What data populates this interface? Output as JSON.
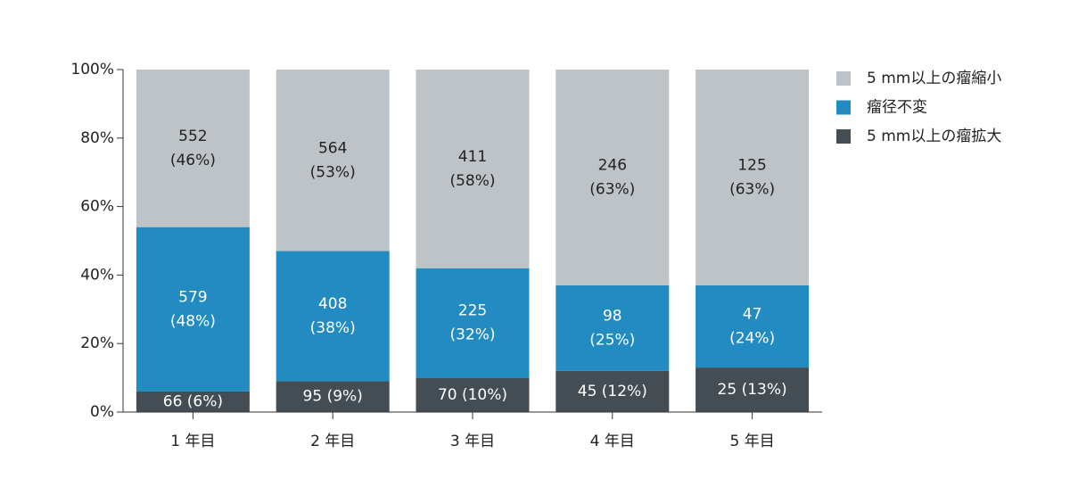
{
  "chart_data": {
    "type": "stacked_bar",
    "categories": [
      "1 年目",
      "2 年目",
      "3 年目",
      "4 年目",
      "5 年目"
    ],
    "series": [
      {
        "name": "5 mm以上の瘤拡大",
        "color": "#444d54",
        "values": [
          6,
          9,
          10,
          12,
          13
        ],
        "value_labels": [
          [
            "66 (6%)"
          ],
          [
            "95 (9%)"
          ],
          [
            "70 (10%)"
          ],
          [
            "45 (12%)"
          ],
          [
            "25 (13%)"
          ]
        ]
      },
      {
        "name": "瘤径不変",
        "color": "#228bc2",
        "values": [
          48,
          38,
          32,
          25,
          24
        ],
        "value_labels": [
          [
            "579",
            "(48%)"
          ],
          [
            "408",
            "(38%)"
          ],
          [
            "225",
            "(32%)"
          ],
          [
            "98",
            "(25%)"
          ],
          [
            "47",
            "(24%)"
          ]
        ]
      },
      {
        "name": "5 mm以上の瘤縮小",
        "color": "#bdc3c6",
        "values": [
          46,
          53,
          58,
          63,
          63
        ],
        "value_labels": [
          [
            "552",
            "(46%)"
          ],
          [
            "564",
            "(53%)"
          ],
          [
            "411",
            "(58%)"
          ],
          [
            "246",
            "(63%)"
          ],
          [
            "125",
            "(63%)"
          ]
        ]
      }
    ],
    "ylim": [
      0,
      100
    ],
    "yticks": [
      {
        "value": 0,
        "label": "0%"
      },
      {
        "value": 20,
        "label": "20%"
      },
      {
        "value": 40,
        "label": "40%"
      },
      {
        "value": 60,
        "label": "60%"
      },
      {
        "value": 80,
        "label": "80%"
      },
      {
        "value": 100,
        "label": "100%"
      }
    ],
    "legend": "right"
  }
}
